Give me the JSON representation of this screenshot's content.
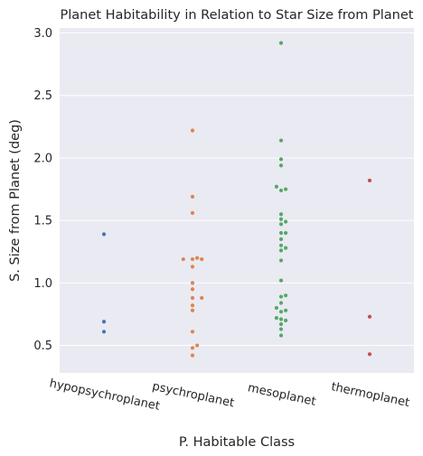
{
  "chart_data": {
    "type": "scatter",
    "subtype": "swarm",
    "title": "Planet Habitability in Relation to Star Size from Planet",
    "xlabel": "P. Habitable Class",
    "ylabel": "S. Size from Planet (deg)",
    "categories": [
      "hypopsychroplanet",
      "psychroplanet",
      "mesoplanet",
      "thermoplanet"
    ],
    "y_ticks": [
      "0.5",
      "1.0",
      "1.5",
      "2.0",
      "2.5",
      "3.0"
    ],
    "y_tick_values": [
      0.5,
      1.0,
      1.5,
      2.0,
      2.5,
      3.0
    ],
    "ylim": [
      0.28,
      3.04
    ],
    "grid": true,
    "background": "#eaeaf2",
    "colors": [
      "#4c72b0",
      "#dd8452",
      "#55a868",
      "#c44e52"
    ],
    "series": [
      {
        "values": [
          1.39,
          0.69,
          0.61
        ]
      },
      {
        "values": [
          2.22,
          1.69,
          1.56,
          1.2,
          1.19,
          1.19,
          1.19,
          1.13,
          1.0,
          0.95,
          0.88,
          0.88,
          0.82,
          0.78,
          0.61,
          0.5,
          0.48,
          0.42
        ]
      },
      {
        "values": [
          2.92,
          2.14,
          1.99,
          1.94,
          1.77,
          1.75,
          1.74,
          1.55,
          1.51,
          1.49,
          1.47,
          1.4,
          1.4,
          1.35,
          1.3,
          1.28,
          1.26,
          1.18,
          1.02,
          0.9,
          0.89,
          0.84,
          0.8,
          0.78,
          0.77,
          0.72,
          0.71,
          0.7,
          0.67,
          0.63,
          0.58
        ]
      },
      {
        "values": [
          1.82,
          0.73,
          0.43
        ]
      }
    ]
  }
}
